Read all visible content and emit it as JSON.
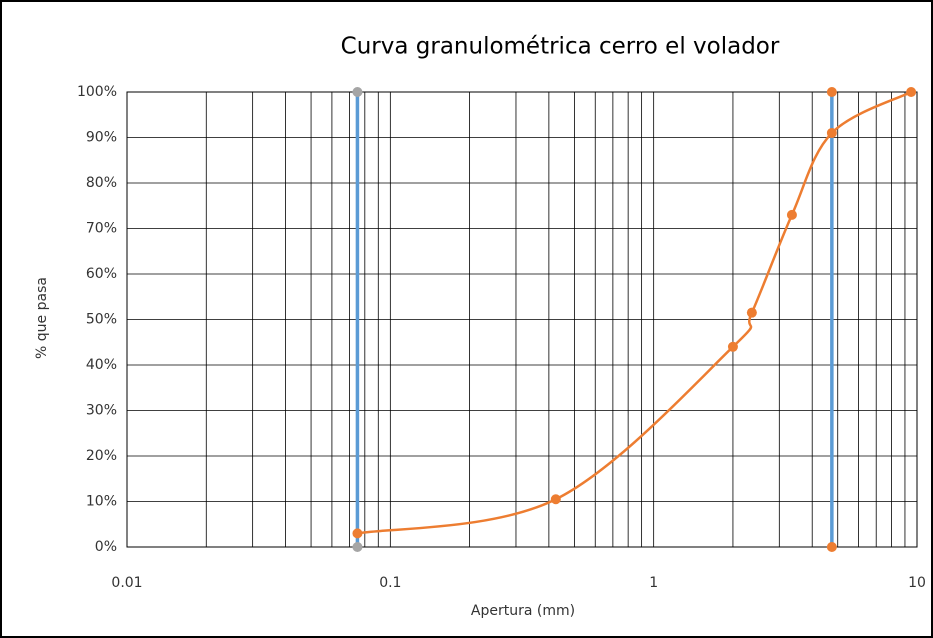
{
  "chart_data": {
    "type": "line",
    "title": "Curva granulométrica cerro el volador",
    "xlabel": "Apertura (mm)",
    "ylabel": "% que pasa",
    "xscale": "log",
    "xlim": [
      0.01,
      10
    ],
    "xticks": [
      0.01,
      0.1,
      1,
      10
    ],
    "minor_grid": true,
    "ylim": [
      0,
      100
    ],
    "yticks": [
      {
        "value": 0,
        "label": "0%"
      },
      {
        "value": 10,
        "label": "10%"
      },
      {
        "value": 20,
        "label": "20%"
      },
      {
        "value": 30,
        "label": "30%"
      },
      {
        "value": 40,
        "label": "40%"
      },
      {
        "value": 50,
        "label": "50%"
      },
      {
        "value": 60,
        "label": "60%"
      },
      {
        "value": 70,
        "label": "70%"
      },
      {
        "value": 80,
        "label": "80%"
      },
      {
        "value": 90,
        "label": "90%"
      },
      {
        "value": 100,
        "label": "100%"
      }
    ],
    "grid": true,
    "series": [
      {
        "color": "#5b9bd5",
        "marker_color": "#a5a5a5",
        "smooth": false,
        "x": [
          0.075,
          0.075
        ],
        "values": [
          0,
          100
        ]
      },
      {
        "color": "#5b9bd5",
        "marker_color": "#ed7d31",
        "smooth": false,
        "x": [
          4.75,
          4.75
        ],
        "values": [
          0,
          100
        ]
      },
      {
        "color": "#ed7d31",
        "marker_color": "#ed7d31",
        "smooth": true,
        "x": [
          0.075,
          0.425,
          2,
          2.36,
          3.35,
          4.75,
          9.5
        ],
        "values": [
          3,
          10.5,
          44,
          51.5,
          73,
          91,
          100
        ]
      }
    ]
  }
}
